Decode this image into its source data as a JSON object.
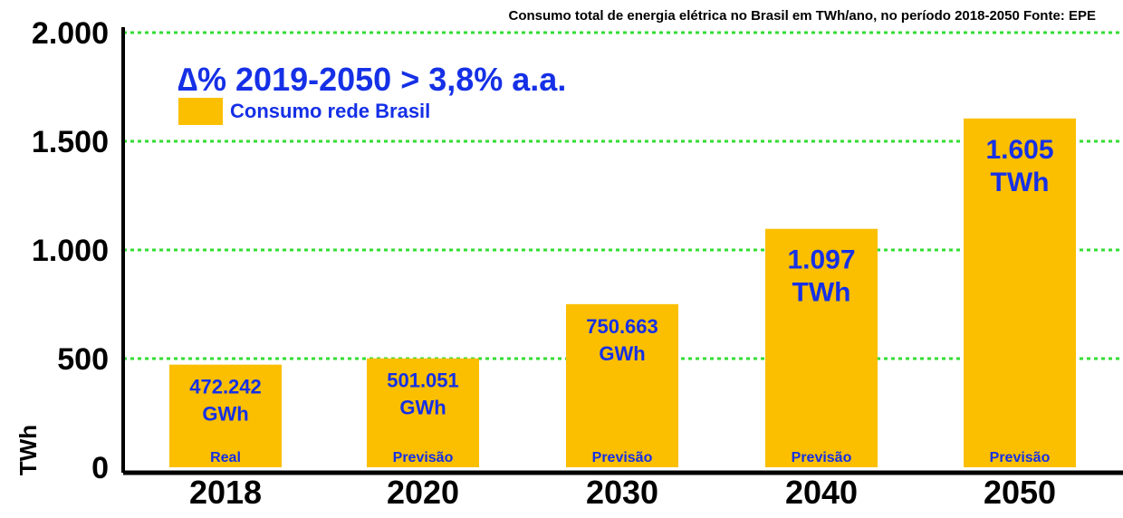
{
  "chart_data": {
    "type": "bar",
    "title": "Consumo total de energia elétrica no Brasil em TWh/ano, no período 2018-2050 Fonte: EPE",
    "ylabel": "TWh",
    "xlabel": "",
    "ylim": [
      0,
      2000
    ],
    "yticks": [
      0,
      500,
      1000,
      1500,
      2000
    ],
    "ytick_labels": [
      "0",
      "500",
      "1.000",
      "1.500",
      "2.000"
    ],
    "grid": true,
    "grid_style": "dotted green horizontal",
    "categories": [
      "2018",
      "2020",
      "2030",
      "2040",
      "2050"
    ],
    "series": [
      {
        "name": "Consumo rede Brasil",
        "color": "#fbbf00",
        "values": [
          472.242,
          501.051,
          750.663,
          1097,
          1605
        ]
      }
    ],
    "data_labels": [
      [
        "472.242",
        "GWh"
      ],
      [
        "501.051",
        "GWh"
      ],
      [
        "750.663",
        "GWh"
      ],
      [
        "1.097",
        "TWh"
      ],
      [
        "1.605",
        "TWh"
      ]
    ],
    "bar_notes": [
      "Real",
      "Previsão",
      "Previsão",
      "Previsão",
      "Previsão"
    ],
    "annotation": "∆% 2019-2050 > 3,8% a.a.",
    "legend": {
      "label": "Consumo rede Brasil",
      "color": "#fbbf00",
      "placement": "top-left"
    },
    "colors": {
      "bar": "#fbbf00",
      "grid": "#33dd33",
      "text_accent": "#1530e6",
      "axis": "#000000"
    }
  }
}
